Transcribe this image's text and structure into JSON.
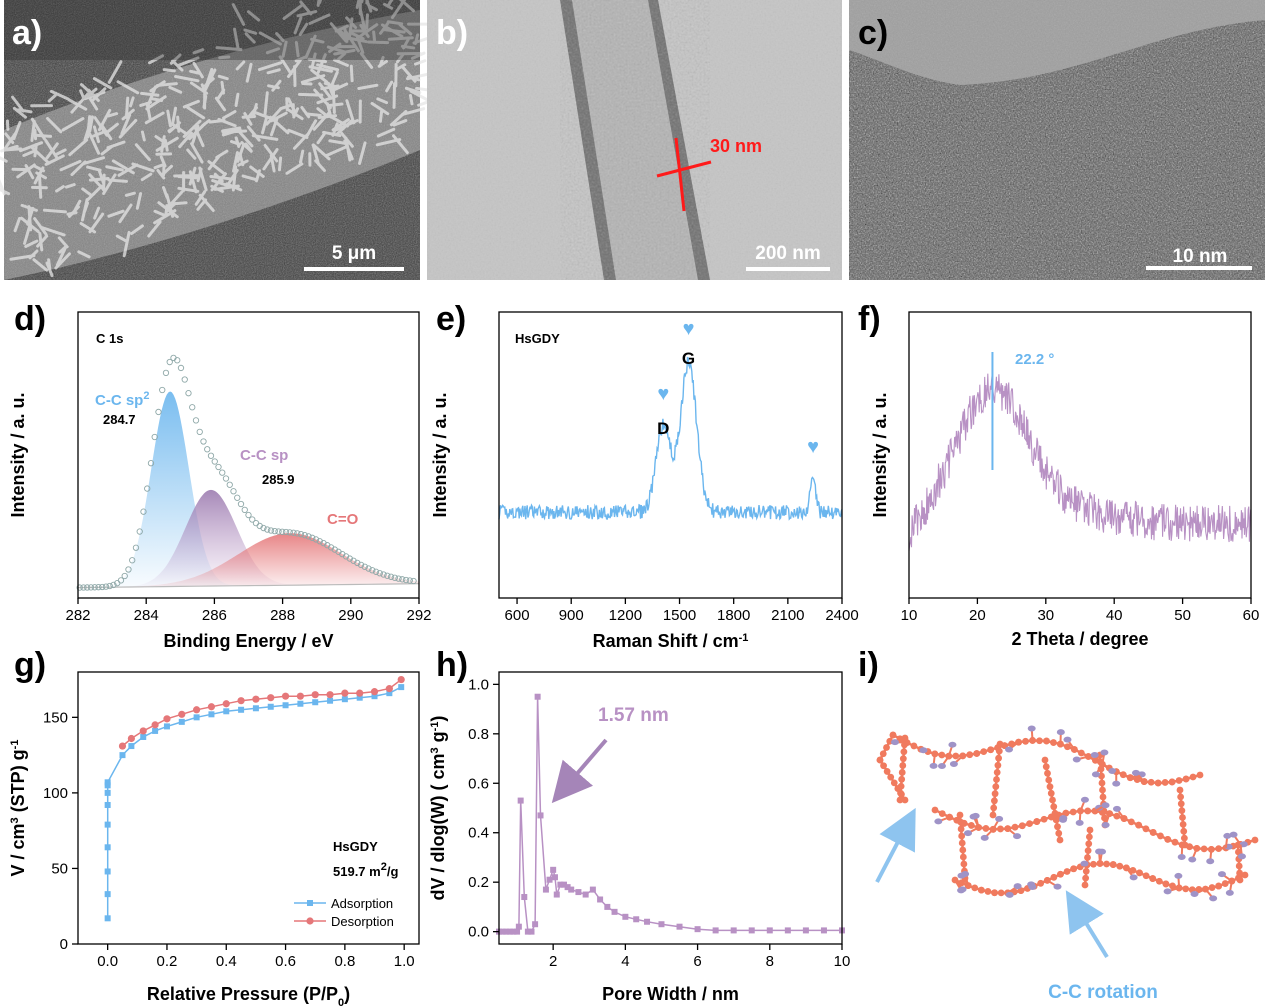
{
  "colors": {
    "blue": "#6bb6ee",
    "purple": "#b891c4",
    "red_fill": "#e57779",
    "salmon": "#f07a5e",
    "gray_circle": "#8fa8a8"
  },
  "panel_labels": {
    "a": "a)",
    "b": "b)",
    "c": "c)",
    "d": "d)",
    "e": "e)",
    "f": "f)",
    "g": "g)",
    "h": "h)",
    "i": "i)"
  },
  "images": {
    "a_scalebar": "5 μm",
    "b_scalebar": "200 nm",
    "b_thickness": "30 nm",
    "c_scalebar": "10 nm"
  },
  "chart_data": [
    {
      "id": "d",
      "type": "line",
      "title": "C 1s",
      "xlabel": "Binding Energy / eV",
      "ylabel": "Intensity / a. u.",
      "xlim": [
        282,
        292
      ],
      "xticks": [
        282,
        284,
        286,
        288,
        290,
        292
      ],
      "ylim": [
        0,
        1.1
      ],
      "peaks": [
        {
          "name": "C-C sp",
          "sup": "2",
          "center": 284.7,
          "label": "284.7",
          "height": 0.75,
          "sigma": 0.55
        },
        {
          "name": "C-C sp",
          "sup": "",
          "center": 285.9,
          "label": "285.9",
          "height": 0.37,
          "sigma": 0.75
        },
        {
          "name": "C=O",
          "sup": "",
          "center": 288.2,
          "label": "",
          "height": 0.2,
          "sigma": 1.5
        }
      ],
      "baseline": 0.04
    },
    {
      "id": "e",
      "type": "line",
      "title": "HsGDY",
      "xlabel": "Raman Shift / cm",
      "xlabel_sup": "-1",
      "ylabel": "Intensity / a. u.",
      "xlim": [
        500,
        2400
      ],
      "xticks": [
        600,
        900,
        1200,
        1500,
        1800,
        2100,
        2400
      ],
      "ylim": [
        0,
        1
      ],
      "baseline": 0.3,
      "bands": [
        {
          "label": "D",
          "center": 1410,
          "height": 0.3,
          "width": 40
        },
        {
          "label": "G",
          "center": 1550,
          "height": 0.52,
          "width": 45
        },
        {
          "label": "",
          "center": 2240,
          "height": 0.14,
          "width": 14
        }
      ],
      "markers": [
        1410,
        1550,
        2240
      ]
    },
    {
      "id": "f",
      "type": "line",
      "xlabel": "2 Theta / degree",
      "ylabel": "Intensity / a. u.",
      "xlim": [
        10,
        60
      ],
      "xticks": [
        10,
        20,
        30,
        40,
        50,
        60
      ],
      "ylim": [
        0,
        1
      ],
      "peak_position": 22.2,
      "peak_label": "22.2 °"
    },
    {
      "id": "g",
      "type": "line",
      "title": "HsGDY",
      "surface_area": "519.7 m",
      "surface_area_sup": "2",
      "surface_area_unit": "/g",
      "xlabel": "Relative Pressure (P/P",
      "xlabel_sub": "0",
      "xlabel_end": ")",
      "ylabel": "V / cm",
      "ylabel_sup": "3",
      "ylabel_mid": " (STP) g",
      "ylabel_sup2": "-1",
      "xlim": [
        -0.1,
        1.05
      ],
      "xticks": [
        0.0,
        0.2,
        0.4,
        0.6,
        0.8,
        1.0
      ],
      "ylim": [
        0,
        180
      ],
      "yticks": [
        0,
        50,
        100,
        150
      ],
      "series": [
        {
          "name": "Adsorption",
          "x": [
            0.0,
            0.0,
            0.0,
            0.0,
            0.0,
            0.0,
            0.0,
            0.0,
            0.0,
            0.05,
            0.08,
            0.12,
            0.16,
            0.2,
            0.25,
            0.3,
            0.35,
            0.4,
            0.45,
            0.5,
            0.55,
            0.6,
            0.65,
            0.7,
            0.75,
            0.8,
            0.85,
            0.9,
            0.95,
            0.99
          ],
          "y": [
            17,
            33,
            48,
            64,
            79,
            92,
            100,
            105,
            107,
            125,
            131,
            137,
            141,
            144,
            147,
            150,
            152,
            154,
            155,
            156,
            157,
            158,
            159,
            160,
            161,
            162,
            163,
            164,
            166,
            170
          ]
        },
        {
          "name": "Desorption",
          "x": [
            0.05,
            0.08,
            0.12,
            0.16,
            0.2,
            0.25,
            0.3,
            0.35,
            0.4,
            0.45,
            0.5,
            0.55,
            0.6,
            0.65,
            0.7,
            0.75,
            0.8,
            0.85,
            0.9,
            0.95,
            0.99
          ],
          "y": [
            131,
            136,
            141,
            145,
            149,
            152,
            155,
            157,
            159,
            161,
            162,
            163,
            164,
            164,
            165,
            165,
            166,
            166,
            167,
            169,
            175
          ]
        }
      ],
      "legend": [
        "Adsorption",
        "Desorption"
      ]
    },
    {
      "id": "h",
      "type": "line",
      "xlabel": "Pore Width / nm",
      "ylabel": "dV / dlog(W) ( cm",
      "ylabel_sup": "3",
      "ylabel_mid": " g",
      "ylabel_sup2": "-1",
      "ylabel_end": ")",
      "xlim": [
        0.5,
        10
      ],
      "xticks": [
        2,
        4,
        6,
        8,
        10
      ],
      "ylim": [
        -0.05,
        1.05
      ],
      "yticks": [
        0.0,
        0.2,
        0.4,
        0.6,
        0.8,
        1.0
      ],
      "annotation": "1.57 nm",
      "annotation_x": 1.57,
      "series": [
        {
          "name": "pore size distribution",
          "x": [
            0.5,
            0.6,
            0.7,
            0.8,
            0.9,
            1.0,
            1.05,
            1.1,
            1.2,
            1.3,
            1.4,
            1.5,
            1.57,
            1.65,
            1.8,
            1.9,
            2.0,
            2.05,
            2.1,
            2.2,
            2.3,
            2.4,
            2.5,
            2.7,
            2.9,
            3.1,
            3.3,
            3.5,
            3.7,
            4.0,
            4.3,
            4.6,
            5.0,
            5.5,
            6.0,
            6.5,
            7.0,
            7.5,
            8.0,
            8.5,
            9.0,
            9.5,
            10.0
          ],
          "y": [
            0,
            0,
            0,
            0,
            0,
            0,
            0.02,
            0.53,
            0.14,
            0.0,
            0.0,
            0.03,
            0.95,
            0.47,
            0.17,
            0.21,
            0.25,
            0.22,
            0.15,
            0.19,
            0.19,
            0.18,
            0.17,
            0.16,
            0.15,
            0.17,
            0.13,
            0.1,
            0.08,
            0.06,
            0.05,
            0.04,
            0.03,
            0.02,
            0.01,
            0.005,
            0.005,
            0.005,
            0.005,
            0.005,
            0.005,
            0.005,
            0.005
          ]
        }
      ]
    }
  ],
  "panel_i": {
    "caption": "C-C rotation"
  }
}
